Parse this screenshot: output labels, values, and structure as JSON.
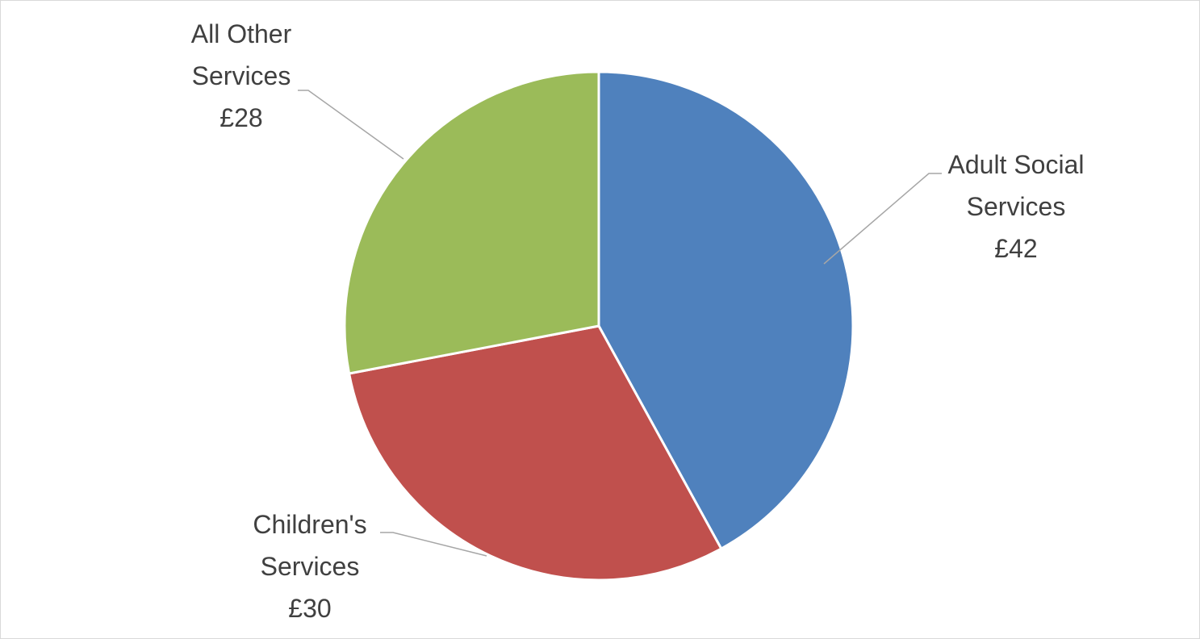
{
  "chart_data": {
    "type": "pie",
    "currency_symbol": "£",
    "categories": [
      "Adult Social Services",
      "Children's Services",
      "All Other Services"
    ],
    "values": [
      42,
      30,
      28
    ],
    "colors": [
      "#4f81bd",
      "#c0504d",
      "#9bbb59"
    ],
    "labels": [
      {
        "lines": [
          "Adult Social",
          "Services",
          "£42"
        ]
      },
      {
        "lines": [
          "Children's",
          "Services",
          "£30"
        ]
      },
      {
        "lines": [
          "All Other",
          "Services",
          "£28"
        ]
      }
    ],
    "start_angle": "12 o'clock",
    "direction": "clockwise",
    "legend": "none"
  }
}
